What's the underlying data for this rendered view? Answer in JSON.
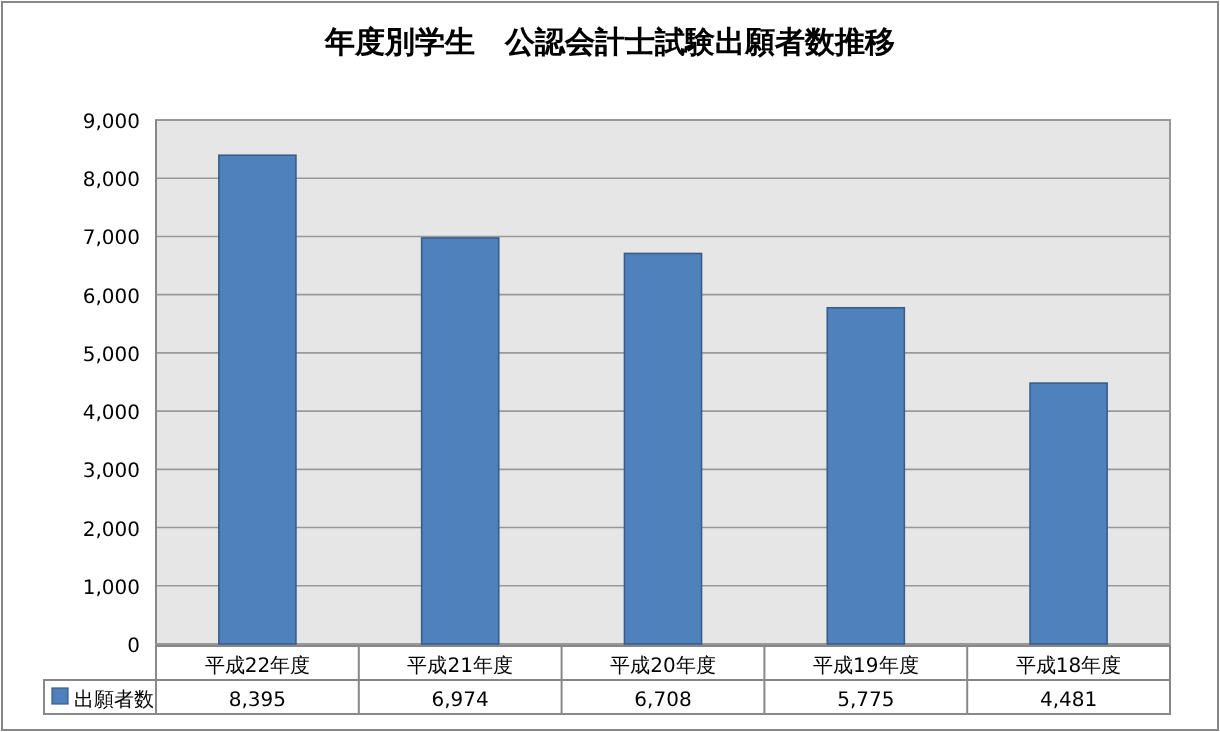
{
  "chart_data": {
    "type": "bar",
    "title": "年度別学生　公認会計士試験出願者数推移",
    "categories": [
      "平成22年度",
      "平成21年度",
      "平成20年度",
      "平成19年度",
      "平成18年度"
    ],
    "series": [
      {
        "name": "出願者数",
        "color": "#4f81bd",
        "values": [
          8395,
          6974,
          6708,
          5775,
          4481
        ],
        "value_labels": [
          "8,395",
          "6,974",
          "6,708",
          "5,775",
          "4,481"
        ]
      }
    ],
    "ylim": [
      0,
      9000
    ],
    "yticks": [
      0,
      {
        "value": 1000,
        "label": "1,000"
      },
      {
        "value": 2000,
        "label": "2,000"
      },
      {
        "value": 3000,
        "label": "3,000"
      },
      {
        "value": 4000,
        "label": "4,000"
      },
      {
        "value": 5000,
        "label": "5,000"
      },
      {
        "value": 6000,
        "label": "6,000"
      },
      {
        "value": 7000,
        "label": "7,000"
      },
      {
        "value": 8000,
        "label": "8,000"
      },
      {
        "value": 9000,
        "label": "9,000"
      }
    ],
    "grid": "y",
    "legend": "bottom"
  }
}
